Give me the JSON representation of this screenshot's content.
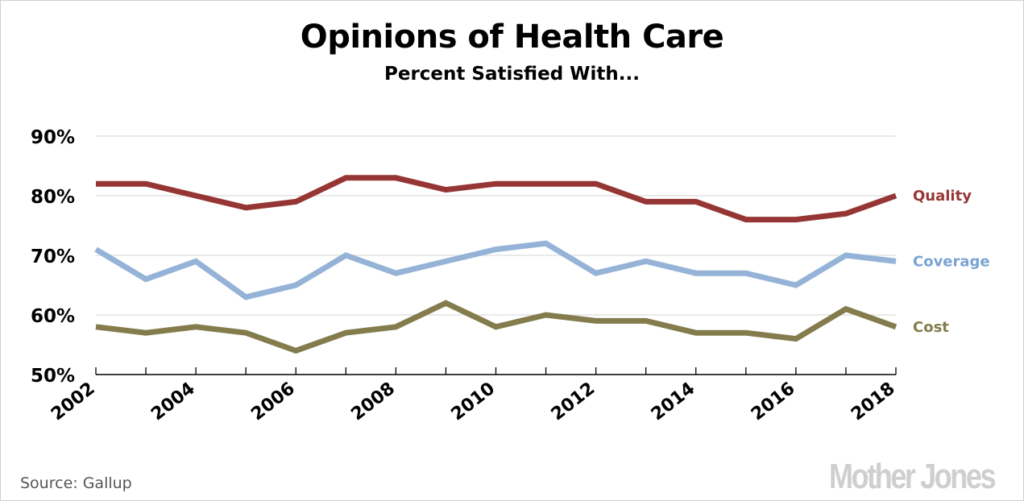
{
  "chart_data": {
    "type": "line",
    "title": "Opinions of Health Care",
    "subtitle": "Percent Satisfied With...",
    "xlabel": "",
    "ylabel": "",
    "x": [
      2002,
      2003,
      2004,
      2005,
      2006,
      2007,
      2008,
      2009,
      2010,
      2011,
      2012,
      2013,
      2014,
      2015,
      2016,
      2017,
      2018
    ],
    "x_tick_labels": [
      "2002",
      "2004",
      "2006",
      "2008",
      "2010",
      "2012",
      "2014",
      "2016",
      "2018"
    ],
    "y_tick_values": [
      50,
      60,
      70,
      80,
      90
    ],
    "y_tick_labels": [
      "50%",
      "60%",
      "70%",
      "80%",
      "90%"
    ],
    "ylim": [
      50,
      90
    ],
    "grid": true,
    "legend": "right, inline labels at series end",
    "series": [
      {
        "name": "Quality",
        "color": "#963634",
        "values": [
          82,
          82,
          80,
          78,
          79,
          83,
          83,
          81,
          82,
          82,
          82,
          79,
          79,
          76,
          76,
          77,
          80
        ]
      },
      {
        "name": "Coverage",
        "color": "#95b3d7",
        "label_color": "#7aa3d3",
        "values": [
          71,
          66,
          69,
          63,
          65,
          70,
          67,
          69,
          71,
          72,
          67,
          69,
          67,
          67,
          65,
          70,
          69
        ]
      },
      {
        "name": "Cost",
        "color": "#847c4d",
        "values": [
          58,
          57,
          58,
          57,
          54,
          57,
          58,
          62,
          58,
          60,
          59,
          59,
          57,
          57,
          56,
          61,
          58
        ]
      }
    ]
  },
  "footer": {
    "source": "Source:  Gallup",
    "logo": "Mother Jones"
  }
}
